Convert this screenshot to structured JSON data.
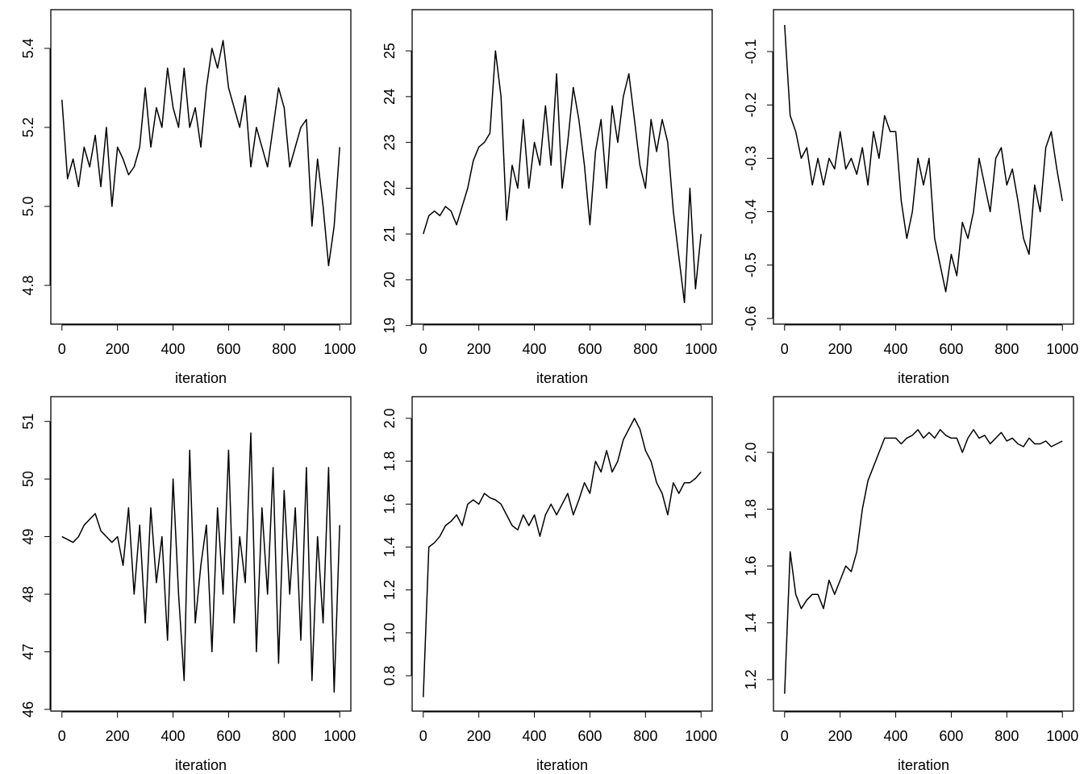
{
  "chart_data": [
    {
      "type": "line",
      "title": "",
      "xlabel": "iteration",
      "ylabel": "",
      "xlim": [
        -40,
        1040
      ],
      "x_range": [
        0,
        1000
      ],
      "xticks": [
        "0",
        "200",
        "400",
        "600",
        "800",
        "1000"
      ],
      "yticks": [
        "4.8",
        "5.0",
        "5.2",
        "5.4"
      ],
      "ylim": [
        4.702,
        5.498
      ],
      "values": [
        5.27,
        5.07,
        5.12,
        5.05,
        5.15,
        5.1,
        5.18,
        5.05,
        5.2,
        5.0,
        5.15,
        5.12,
        5.08,
        5.1,
        5.15,
        5.3,
        5.15,
        5.25,
        5.2,
        5.35,
        5.25,
        5.2,
        5.35,
        5.2,
        5.25,
        5.15,
        5.3,
        5.4,
        5.35,
        5.42,
        5.3,
        5.25,
        5.2,
        5.28,
        5.1,
        5.2,
        5.15,
        5.1,
        5.2,
        5.3,
        5.25,
        5.1,
        5.15,
        5.2,
        5.22,
        4.95,
        5.12,
        5.0,
        4.85,
        4.95,
        5.15
      ]
    },
    {
      "type": "line",
      "title": "",
      "xlabel": "iteration",
      "ylabel": "",
      "xlim": [
        -40,
        1040
      ],
      "x_range": [
        0,
        1000
      ],
      "xticks": [
        "0",
        "200",
        "400",
        "600",
        "800",
        "1000"
      ],
      "yticks": [
        "19",
        "20",
        "21",
        "22",
        "23",
        "24",
        "25"
      ],
      "ylim": [
        19.03,
        25.9
      ],
      "values": [
        21.0,
        21.4,
        21.5,
        21.4,
        21.6,
        21.5,
        21.2,
        21.6,
        22.0,
        22.6,
        22.9,
        23.0,
        23.2,
        25.0,
        24.0,
        21.3,
        22.5,
        22.0,
        23.5,
        22.0,
        23.0,
        22.5,
        23.8,
        22.5,
        24.5,
        22.0,
        23.0,
        24.2,
        23.5,
        22.5,
        21.2,
        22.8,
        23.5,
        22.0,
        23.8,
        23.0,
        24.0,
        24.5,
        23.5,
        22.5,
        22.0,
        23.5,
        22.8,
        23.5,
        23.0,
        21.5,
        20.5,
        19.5,
        22.0,
        19.8,
        21.0
      ]
    },
    {
      "type": "line",
      "title": "",
      "xlabel": "iteration",
      "ylabel": "",
      "xlim": [
        -40,
        1040
      ],
      "x_range": [
        0,
        1000
      ],
      "xticks": [
        "0",
        "200",
        "400",
        "600",
        "800",
        "1000"
      ],
      "yticks": [
        "-0.6",
        "-0.5",
        "-0.4",
        "-0.3",
        "-0.2",
        "-0.1"
      ],
      "ylim": [
        -0.6106,
        -0.0215
      ],
      "values": [
        -0.05,
        -0.22,
        -0.25,
        -0.3,
        -0.28,
        -0.35,
        -0.3,
        -0.35,
        -0.3,
        -0.32,
        -0.25,
        -0.32,
        -0.3,
        -0.33,
        -0.28,
        -0.35,
        -0.25,
        -0.3,
        -0.22,
        -0.25,
        -0.25,
        -0.38,
        -0.45,
        -0.4,
        -0.3,
        -0.35,
        -0.3,
        -0.45,
        -0.5,
        -0.55,
        -0.48,
        -0.52,
        -0.42,
        -0.45,
        -0.4,
        -0.3,
        -0.35,
        -0.4,
        -0.3,
        -0.28,
        -0.35,
        -0.32,
        -0.38,
        -0.45,
        -0.48,
        -0.35,
        -0.4,
        -0.28,
        -0.25,
        -0.32,
        -0.38
      ]
    },
    {
      "type": "line",
      "title": "",
      "xlabel": "iteration",
      "ylabel": "",
      "xlim": [
        -40,
        1040
      ],
      "x_range": [
        0,
        1000
      ],
      "xticks": [
        "0",
        "200",
        "400",
        "600",
        "800",
        "1000"
      ],
      "yticks": [
        "46",
        "47",
        "48",
        "49",
        "50",
        "51"
      ],
      "ylim": [
        45.97,
        51.43
      ],
      "values": [
        49.0,
        48.95,
        48.9,
        49.0,
        49.2,
        49.3,
        49.4,
        49.1,
        49.0,
        48.9,
        49.0,
        48.5,
        49.5,
        48.0,
        49.2,
        47.5,
        49.5,
        48.2,
        49.0,
        47.2,
        50.0,
        48.0,
        46.5,
        50.5,
        47.5,
        48.5,
        49.2,
        47.0,
        49.5,
        48.0,
        50.5,
        47.5,
        49.0,
        48.2,
        50.8,
        47.0,
        49.5,
        48.0,
        50.2,
        46.8,
        49.8,
        48.0,
        49.5,
        47.2,
        50.2,
        46.5,
        49.0,
        47.5,
        50.2,
        46.3,
        49.2
      ]
    },
    {
      "type": "line",
      "title": "",
      "xlabel": "iteration",
      "ylabel": "",
      "xlim": [
        -40,
        1040
      ],
      "x_range": [
        0,
        1000
      ],
      "xticks": [
        "0",
        "200",
        "400",
        "600",
        "800",
        "1000"
      ],
      "yticks": [
        "0.8",
        "1.0",
        "1.2",
        "1.4",
        "1.6",
        "1.8",
        "2.0"
      ],
      "ylim": [
        0.635,
        2.101
      ],
      "values": [
        0.7,
        1.4,
        1.42,
        1.45,
        1.5,
        1.52,
        1.55,
        1.5,
        1.6,
        1.62,
        1.6,
        1.65,
        1.63,
        1.62,
        1.6,
        1.55,
        1.5,
        1.48,
        1.55,
        1.5,
        1.55,
        1.45,
        1.55,
        1.6,
        1.55,
        1.6,
        1.65,
        1.55,
        1.62,
        1.7,
        1.65,
        1.8,
        1.75,
        1.85,
        1.75,
        1.8,
        1.9,
        1.95,
        2.0,
        1.95,
        1.85,
        1.8,
        1.7,
        1.65,
        1.55,
        1.7,
        1.65,
        1.7,
        1.7,
        1.72,
        1.75
      ]
    },
    {
      "type": "line",
      "title": "",
      "xlabel": "iteration",
      "ylabel": "",
      "xlim": [
        -40,
        1040
      ],
      "x_range": [
        0,
        1000
      ],
      "xticks": [
        "0",
        "200",
        "400",
        "600",
        "800",
        "1000"
      ],
      "yticks": [
        "1.2",
        "1.4",
        "1.6",
        "1.8",
        "2.0"
      ],
      "ylim": [
        1.089,
        2.196
      ],
      "values": [
        1.15,
        1.65,
        1.5,
        1.45,
        1.48,
        1.5,
        1.5,
        1.45,
        1.55,
        1.5,
        1.55,
        1.6,
        1.58,
        1.65,
        1.8,
        1.9,
        1.95,
        2.0,
        2.05,
        2.05,
        2.05,
        2.03,
        2.05,
        2.06,
        2.08,
        2.05,
        2.07,
        2.05,
        2.08,
        2.06,
        2.05,
        2.05,
        2.0,
        2.05,
        2.08,
        2.05,
        2.06,
        2.03,
        2.05,
        2.07,
        2.04,
        2.05,
        2.03,
        2.02,
        2.05,
        2.03,
        2.03,
        2.04,
        2.02,
        2.03,
        2.04
      ]
    }
  ]
}
